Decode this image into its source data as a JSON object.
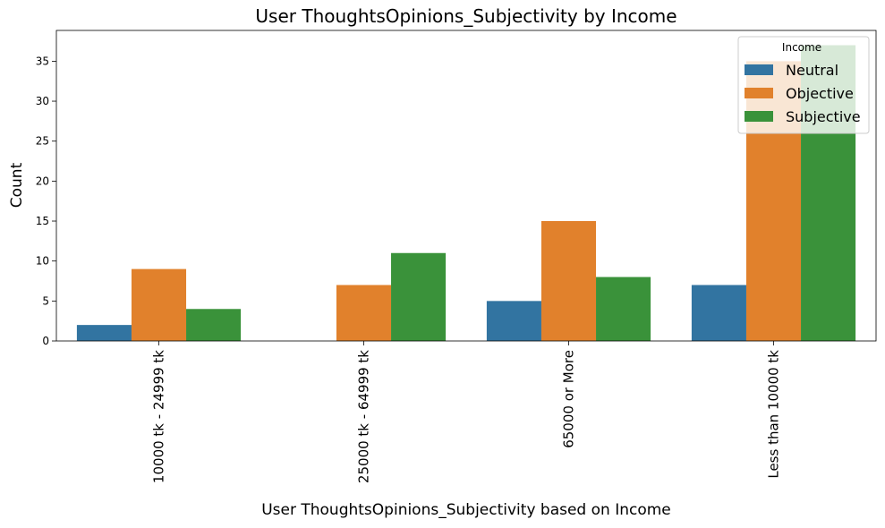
{
  "chart_data": {
    "type": "bar",
    "title": "User ThoughtsOpinions_Subjectivity by Income",
    "xlabel": "User ThoughtsOpinions_Subjectivity based on Income",
    "ylabel": "Count",
    "categories": [
      "10000 tk - 24999 tk",
      "25000 tk - 64999 tk",
      "65000 or More",
      "Less than 10000 tk"
    ],
    "series": [
      {
        "name": "Neutral",
        "color": "#3274a1",
        "values": [
          2,
          0,
          5,
          7
        ]
      },
      {
        "name": "Objective",
        "color": "#e1812c",
        "values": [
          9,
          7,
          15,
          35
        ]
      },
      {
        "name": "Subjective",
        "color": "#3a923a",
        "values": [
          4,
          11,
          8,
          37
        ]
      }
    ],
    "ylim": [
      0,
      38.85
    ],
    "yticks": [
      0,
      5,
      10,
      15,
      20,
      25,
      30,
      35
    ],
    "legend": {
      "title": "Income",
      "position": "top-right"
    },
    "grid": false
  }
}
